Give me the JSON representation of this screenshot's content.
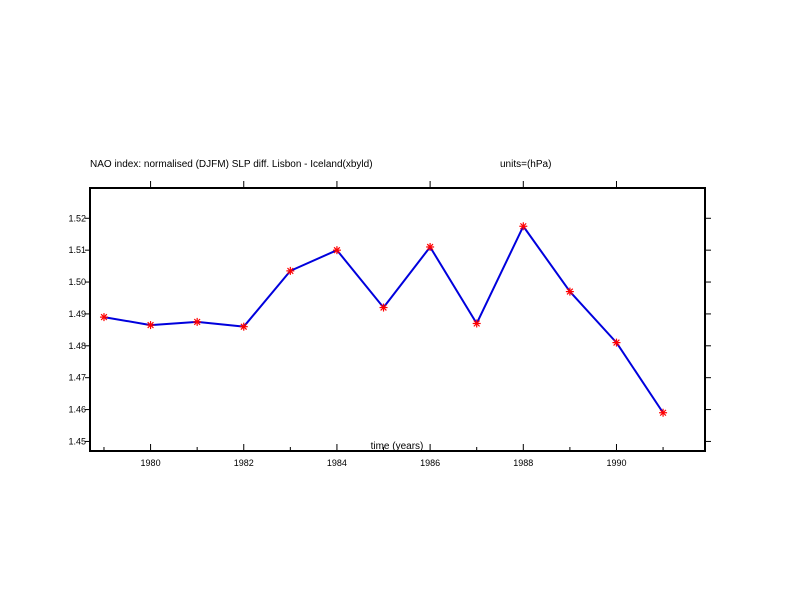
{
  "chart_data": {
    "type": "line",
    "title": "NAO index: normalised (DJFM) SLP diff. Lisbon - Iceland(xbyld)",
    "units_label": "units=(hPa)",
    "xlabel": "time (years)",
    "ylabel": "",
    "x": [
      1979,
      1980,
      1981,
      1982,
      1983,
      1984,
      1985,
      1986,
      1987,
      1988,
      1989,
      1990,
      1991
    ],
    "series": [
      {
        "values": [
          1.489,
          1.4865,
          1.4875,
          1.486,
          1.5035,
          1.51,
          1.492,
          1.511,
          1.487,
          1.5175,
          1.497,
          1.481,
          1.459
        ],
        "line_color": "#0000dd",
        "marker_color": "#ff0000",
        "marker": "asterisk"
      }
    ],
    "xlim": [
      1978.7,
      1991.9
    ],
    "ylim": [
      1.447,
      1.5295
    ],
    "xticks": [
      1980,
      1982,
      1984,
      1986,
      1988,
      1990
    ],
    "xtick_labels": [
      "1980",
      "1982",
      "1984",
      "1986",
      "1988",
      "1990"
    ],
    "xticks_minor": [
      1979,
      1981,
      1983,
      1985,
      1987,
      1989,
      1991
    ],
    "yticks": [
      1.45,
      1.46,
      1.47,
      1.48,
      1.49,
      1.5,
      1.51,
      1.52
    ],
    "ytick_labels": [
      "1.45",
      "1.46",
      "1.47",
      "1.48",
      "1.49",
      "1.50",
      "1.51",
      "1.52"
    ],
    "grid": false,
    "legend": "none"
  }
}
